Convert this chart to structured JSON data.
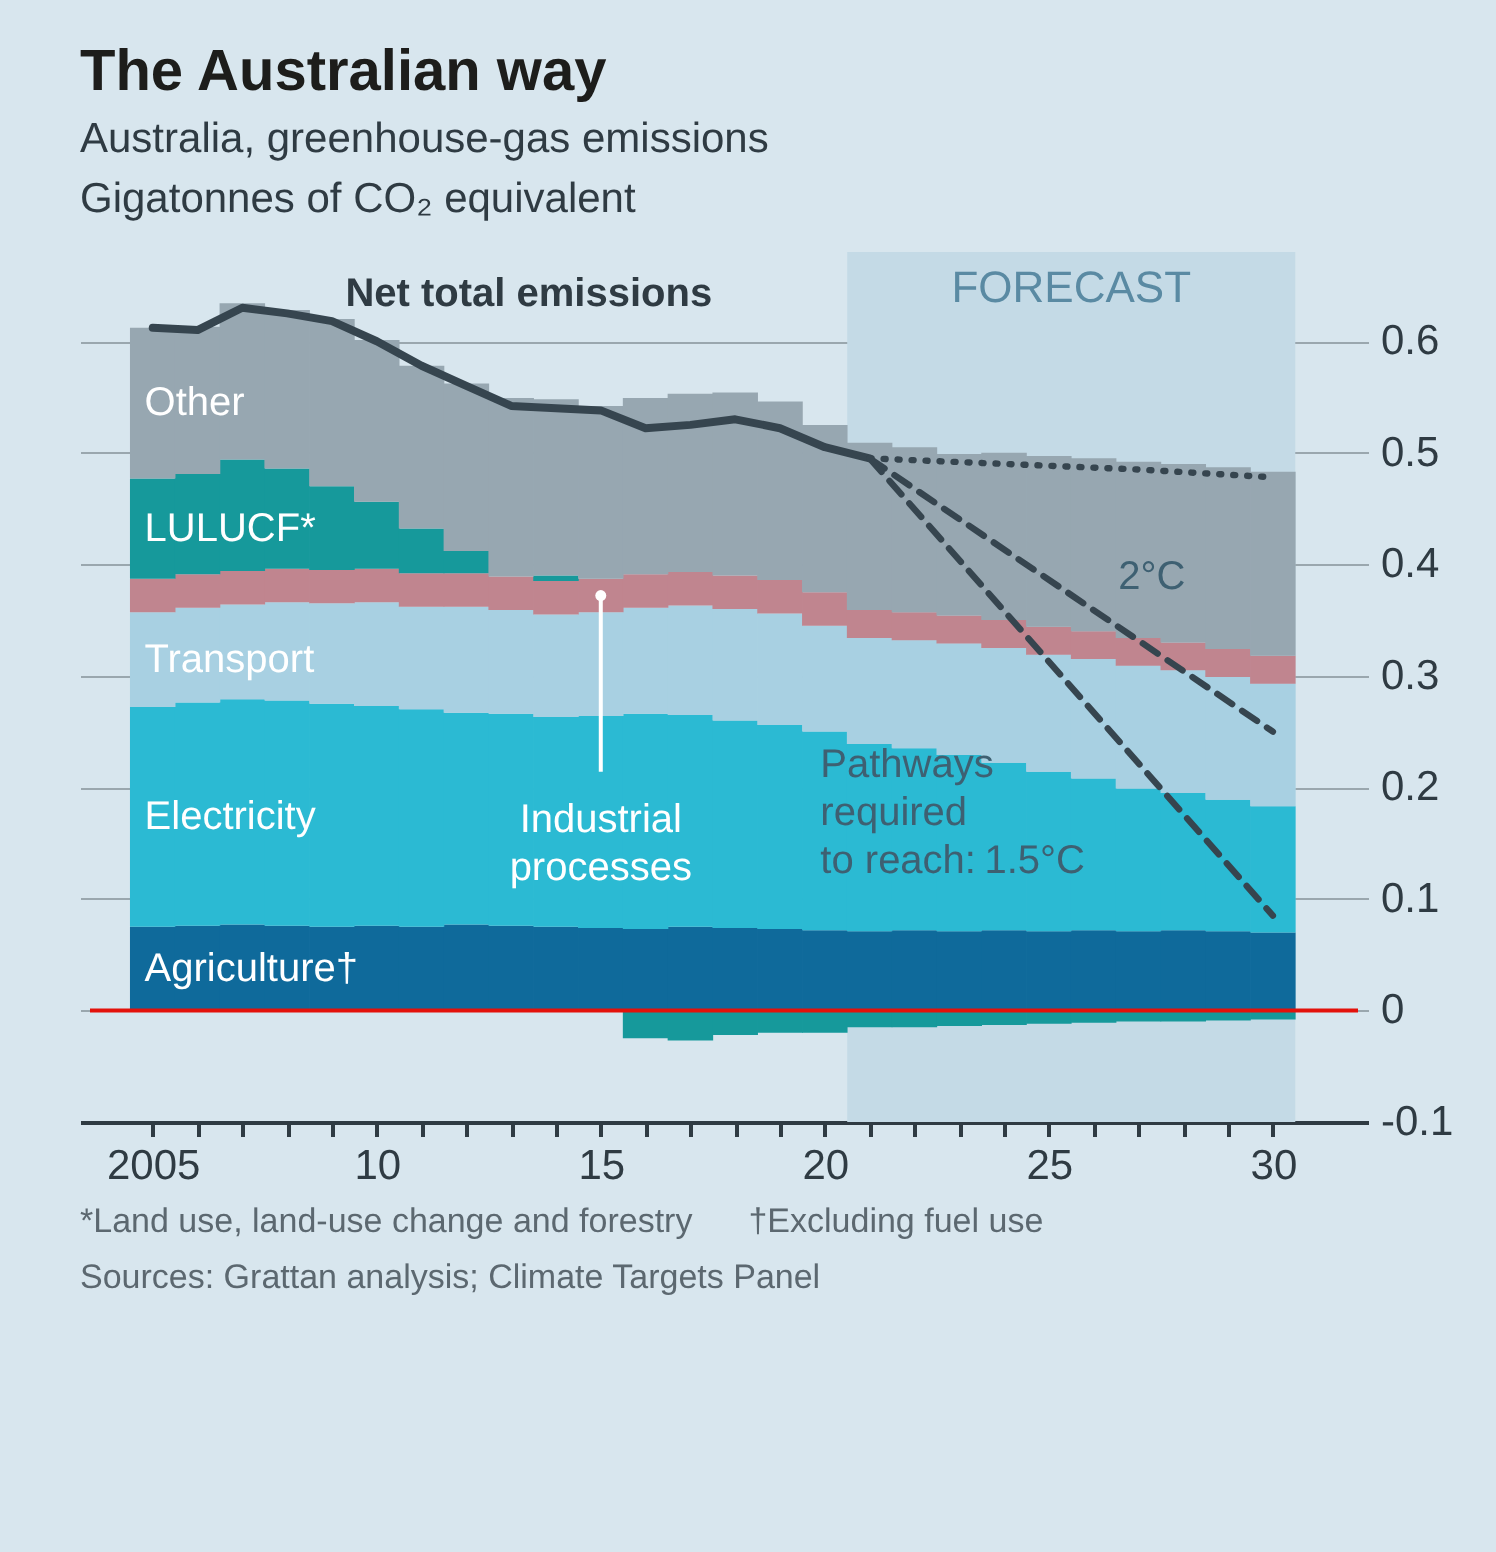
{
  "chart_data": {
    "type": "bar",
    "stacked": true,
    "title": "The Australian way",
    "subtitle": "Australia, greenhouse-gas emissions",
    "ylabel": "Gigatonnes of CO₂ equivalent",
    "x": [
      2005,
      2006,
      2007,
      2008,
      2009,
      2010,
      2011,
      2012,
      2013,
      2014,
      2015,
      2016,
      2017,
      2018,
      2019,
      2020,
      2021,
      2022,
      2023,
      2024,
      2025,
      2026,
      2027,
      2028,
      2029,
      2030
    ],
    "series": [
      {
        "name": "Agriculture†",
        "color": "#0f6a9b",
        "values": [
          0.075,
          0.076,
          0.077,
          0.076,
          0.075,
          0.076,
          0.075,
          0.077,
          0.076,
          0.075,
          0.074,
          0.073,
          0.075,
          0.074,
          0.073,
          0.072,
          0.071,
          0.072,
          0.071,
          0.072,
          0.071,
          0.072,
          0.071,
          0.072,
          0.071,
          0.07
        ]
      },
      {
        "name": "Electricity",
        "color": "#2bbad3",
        "values": [
          0.197,
          0.2,
          0.202,
          0.202,
          0.2,
          0.197,
          0.195,
          0.19,
          0.19,
          0.188,
          0.19,
          0.193,
          0.19,
          0.186,
          0.183,
          0.178,
          0.168,
          0.163,
          0.158,
          0.15,
          0.143,
          0.136,
          0.128,
          0.123,
          0.118,
          0.113
        ]
      },
      {
        "name": "Transport",
        "color": "#a8d0e2",
        "values": [
          0.085,
          0.085,
          0.085,
          0.088,
          0.09,
          0.093,
          0.092,
          0.095,
          0.093,
          0.092,
          0.093,
          0.095,
          0.098,
          0.1,
          0.1,
          0.095,
          0.095,
          0.097,
          0.1,
          0.103,
          0.105,
          0.107,
          0.11,
          0.11,
          0.11,
          0.11
        ]
      },
      {
        "name": "Industrial processes",
        "color": "#c0858f",
        "values": [
          0.03,
          0.03,
          0.03,
          0.03,
          0.03,
          0.03,
          0.03,
          0.03,
          0.03,
          0.03,
          0.03,
          0.03,
          0.03,
          0.03,
          0.03,
          0.03,
          0.025,
          0.025,
          0.025,
          0.025,
          0.025,
          0.025,
          0.025,
          0.025,
          0.025,
          0.025
        ]
      },
      {
        "name": "LULUCF*",
        "color": "#16999b",
        "values": [
          0.09,
          0.09,
          0.1,
          0.09,
          0.075,
          0.06,
          0.04,
          0.02,
          0,
          0.005,
          0,
          -0.025,
          -0.027,
          -0.022,
          -0.02,
          -0.02,
          -0.015,
          -0.015,
          -0.014,
          -0.013,
          -0.012,
          -0.011,
          -0.01,
          -0.01,
          -0.009,
          -0.008
        ]
      },
      {
        "name": "Other",
        "color": "#97a7b1",
        "values": [
          0.135,
          0.132,
          0.14,
          0.142,
          0.15,
          0.145,
          0.146,
          0.15,
          0.16,
          0.158,
          0.155,
          0.158,
          0.16,
          0.164,
          0.16,
          0.15,
          0.15,
          0.148,
          0.145,
          0.15,
          0.153,
          0.155,
          0.158,
          0.16,
          0.163,
          0.165
        ]
      },
      {
        "name": "Net total emissions",
        "type": "line",
        "line_style": "solid",
        "color": "#36454f",
        "x": [
          2005,
          2006,
          2007,
          2008,
          2009,
          2010,
          2011,
          2012,
          2013,
          2014,
          2015,
          2016,
          2017,
          2018,
          2019,
          2020,
          2021
        ],
        "values": [
          0.612,
          0.61,
          0.63,
          0.625,
          0.618,
          0.6,
          0.578,
          0.56,
          0.542,
          0.54,
          0.538,
          0.522,
          0.525,
          0.53,
          0.522,
          0.505,
          0.495
        ]
      },
      {
        "type": "line",
        "line_style": "dotted",
        "color": "#36454f",
        "x": [
          2021,
          2024,
          2027,
          2030
        ],
        "values": [
          0.495,
          0.49,
          0.485,
          0.478
        ]
      },
      {
        "name": "2°C",
        "type": "line",
        "line_style": "dashed",
        "color": "#36454f",
        "x": [
          2021,
          2030
        ],
        "values": [
          0.495,
          0.25
        ]
      },
      {
        "name": "1.5°C",
        "type": "line",
        "line_style": "dashed",
        "color": "#36454f",
        "x": [
          2021,
          2030
        ],
        "values": [
          0.495,
          0.085
        ]
      }
    ],
    "xlim": [
      2003.6,
      2031.9
    ],
    "ylim": [
      -0.1,
      0.68
    ],
    "xticks": [
      2005,
      {
        "value": 2006,
        "label": null
      },
      {
        "value": 2007,
        "label": null
      },
      {
        "value": 2008,
        "label": null
      },
      {
        "value": 2009,
        "label": null
      },
      {
        "value": 2010,
        "label": "10"
      },
      {
        "value": 2011,
        "label": null
      },
      {
        "value": 2012,
        "label": null
      },
      {
        "value": 2013,
        "label": null
      },
      {
        "value": 2014,
        "label": null
      },
      {
        "value": 2015,
        "label": "15"
      },
      {
        "value": 2016,
        "label": null
      },
      {
        "value": 2017,
        "label": null
      },
      {
        "value": 2018,
        "label": null
      },
      {
        "value": 2019,
        "label": null
      },
      {
        "value": 2020,
        "label": "20"
      },
      {
        "value": 2021,
        "label": null
      },
      {
        "value": 2022,
        "label": null
      },
      {
        "value": 2023,
        "label": null
      },
      {
        "value": 2024,
        "label": null
      },
      {
        "value": 2025,
        "label": "25"
      },
      {
        "value": 2026,
        "label": null
      },
      {
        "value": 2027,
        "label": null
      },
      {
        "value": 2028,
        "label": null
      },
      {
        "value": 2029,
        "label": null
      },
      {
        "value": 2030,
        "label": "30"
      }
    ],
    "yticks": [
      -0.1,
      0,
      0.1,
      0.2,
      0.3,
      0.4,
      0.5,
      0.6
    ],
    "grid": "y",
    "legend": false,
    "bands": [
      {
        "axis": "x",
        "from": 2020.5,
        "to": 2030.5,
        "label": "FORECAST",
        "color": "#c4dae6"
      }
    ],
    "ref_lines": [
      {
        "axis": "y",
        "value": 0,
        "color": "#e3120b"
      }
    ],
    "annotations": [
      "Pathways required to reach:",
      "*Land use, land-use change and forestry",
      "†Excluding fuel use",
      "Sources: Grattan analysis; Climate Targets Panel"
    ]
  }
}
